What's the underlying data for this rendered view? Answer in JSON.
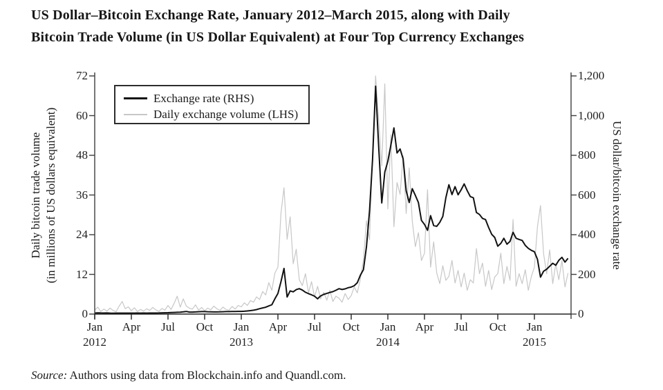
{
  "title": {
    "line1": "US Dollar–Bitcoin Exchange Rate, January 2012–March 2015, along with Daily",
    "line2": "Bitcoin Trade Volume (in US Dollar Equivalent) at Four Top Currency Exchanges"
  },
  "source": {
    "prefix": "Source:",
    "text": " Authors using data from Blockchain.info and Quandl.com."
  },
  "legend": {
    "items": [
      {
        "label": "Exchange rate (RHS)",
        "color": "#111111",
        "thickness": 3
      },
      {
        "label": "Daily exchange volume (LHS)",
        "color": "#c7c7c7",
        "thickness": 2
      }
    ]
  },
  "left_axis": {
    "title_line1": "Daily bitcoin trade volume",
    "title_line2": "(in millions of US dollars equivalent)",
    "ticks": [
      {
        "v": 0,
        "label": "0"
      },
      {
        "v": 12,
        "label": "12"
      },
      {
        "v": 24,
        "label": "24"
      },
      {
        "v": 36,
        "label": "36"
      },
      {
        "v": 48,
        "label": "48"
      },
      {
        "v": 60,
        "label": "60"
      },
      {
        "v": 72,
        "label": "72"
      }
    ],
    "max": 72
  },
  "right_axis": {
    "title": "US dollar/bitcoin exchange rate",
    "ticks": [
      {
        "v": 0,
        "label": "0"
      },
      {
        "v": 200,
        "label": "200"
      },
      {
        "v": 400,
        "label": "400"
      },
      {
        "v": 600,
        "label": "600"
      },
      {
        "v": 800,
        "label": "800"
      },
      {
        "v": 1000,
        "label": "1,000"
      },
      {
        "v": 1200,
        "label": "1,200"
      }
    ],
    "max": 1200
  },
  "x_axis": {
    "ticks": [
      {
        "month": "Jan",
        "year": "2012"
      },
      {
        "month": "Apr"
      },
      {
        "month": "Jul"
      },
      {
        "month": "Oct"
      },
      {
        "month": "Jan",
        "year": "2013"
      },
      {
        "month": "Apr"
      },
      {
        "month": "Jul"
      },
      {
        "month": "Oct"
      },
      {
        "month": "Jan",
        "year": "2014"
      },
      {
        "month": "Apr"
      },
      {
        "month": "Jul"
      },
      {
        "month": "Oct"
      },
      {
        "month": "Jan",
        "year": "2015"
      }
    ],
    "months_total": 39
  },
  "chart_data": {
    "type": "line",
    "title": "US Dollar–Bitcoin Exchange Rate, January 2012–March 2015, along with Daily Bitcoin Trade Volume (in US Dollar Equivalent) at Four Top Currency Exchanges",
    "xlabel": "",
    "ylabel_left": "Daily bitcoin trade volume (in millions of US dollars equivalent)",
    "ylabel_right": "US dollar/bitcoin exchange rate",
    "x_unit": "months since January 2012 (weekly samples, step 0.25 month)",
    "x_range": [
      0,
      39
    ],
    "ylim_left": [
      0,
      72
    ],
    "ylim_right": [
      0,
      1200
    ],
    "grid": false,
    "legend_position": "upper left",
    "series": [
      {
        "name": "Exchange rate (RHS)",
        "axis": "right",
        "color": "#111111",
        "x_start": 0,
        "x_step": 0.25,
        "values": [
          5.3,
          6.1,
          5.5,
          5.2,
          5.7,
          4.9,
          4.5,
          4.9,
          4.9,
          5.0,
          4.7,
          4.8,
          4.9,
          5.0,
          5.1,
          5.0,
          5.1,
          5.0,
          5.1,
          5.2,
          5.3,
          5.6,
          6.4,
          6.7,
          6.8,
          7.6,
          8.4,
          9.0,
          9.4,
          11.2,
          13.1,
          10.1,
          10.2,
          10.9,
          11.8,
          12.4,
          12.4,
          11.9,
          11.6,
          10.9,
          10.8,
          11.3,
          11.7,
          12.4,
          12.6,
          13.3,
          13.2,
          13.5,
          13.6,
          14.3,
          15.7,
          17.3,
          19.6,
          22.6,
          27.1,
          31.1,
          34.6,
          41.2,
          47.1,
          77,
          104,
          163,
          230,
          86,
          117,
          112,
          123,
          128,
          121,
          110,
          103,
          97,
          90,
          77,
          92,
          99,
          104,
          109,
          113,
          120,
          128,
          124,
          127,
          133,
          136,
          143,
          158,
          196,
          224,
          340,
          520,
          780,
          1148,
          840,
          560,
          715,
          770,
          852,
          938,
          812,
          832,
          782,
          622,
          562,
          632,
          598,
          562,
          472,
          452,
          422,
          496,
          446,
          442,
          462,
          492,
          586,
          652,
          602,
          642,
          601,
          626,
          656,
          622,
          592,
          586,
          512,
          502,
          482,
          476,
          436,
          402,
          386,
          342,
          356,
          382,
          352,
          366,
          412,
          382,
          376,
          371,
          346,
          331,
          321,
          314,
          276,
          186,
          216,
          226,
          241,
          256,
          246,
          271,
          286,
          262,
          281
        ]
      },
      {
        "name": "Daily exchange volume (LHS)",
        "axis": "left",
        "color": "#c7c7c7",
        "x_start": 0,
        "x_step": 0.25,
        "values": [
          1.2,
          2.1,
          0.8,
          1.5,
          0.9,
          1.8,
          1.1,
          0.7,
          2.4,
          3.8,
          1.6,
          2.2,
          1.0,
          1.9,
          0.8,
          1.4,
          0.9,
          1.6,
          1.1,
          2.0,
          1.3,
          0.8,
          1.7,
          1.2,
          2.6,
          1.4,
          3.2,
          5.4,
          2.1,
          4.6,
          2.4,
          1.8,
          1.5,
          2.8,
          1.2,
          2.0,
          1.0,
          1.8,
          1.3,
          2.4,
          1.6,
          1.1,
          2.1,
          1.4,
          1.2,
          2.3,
          1.5,
          2.6,
          2.2,
          3.4,
          2.6,
          4.1,
          3.6,
          5.2,
          4.4,
          6.8,
          5.8,
          9.5,
          7.2,
          12.4,
          14.2,
          30.5,
          38.2,
          22.6,
          29.4,
          15.2,
          19.6,
          10.4,
          8.6,
          12.2,
          6.4,
          9.8,
          5.2,
          8.4,
          4.6,
          6.6,
          4.2,
          7.2,
          3.8,
          5.4,
          4.8,
          3.6,
          6.2,
          4.4,
          5.6,
          8.2,
          6.4,
          10.6,
          16.4,
          28.2,
          22.5,
          48.6,
          72,
          58.4,
          44.8,
          69.6,
          31.8,
          54.2,
          26.4,
          39.8,
          36.2,
          47.8,
          30.4,
          44.2,
          28.2,
          20.4,
          24.6,
          16.2,
          18.4,
          37.6,
          14.2,
          21.8,
          12.4,
          9.2,
          14.6,
          10.2,
          11.4,
          16.2,
          9.4,
          13.2,
          8.2,
          12.4,
          7.2,
          10.4,
          9.4,
          19.8,
          12.2,
          15.4,
          8.4,
          13.2,
          7.4,
          11.2,
          12.2,
          18.4,
          9.2,
          14.4,
          10.2,
          28.6,
          8.4,
          12.2,
          9.2,
          13.4,
          7.2,
          11.4,
          14.2,
          26.4,
          32.8,
          18.2,
          12.2,
          19.4,
          9.2,
          15.2,
          10.4,
          16.2,
          8.2,
          12.4
        ]
      }
    ]
  },
  "style": {
    "axis_color": "#3c3c3c",
    "text_color": "#1a1a1a",
    "background": "#ffffff"
  }
}
